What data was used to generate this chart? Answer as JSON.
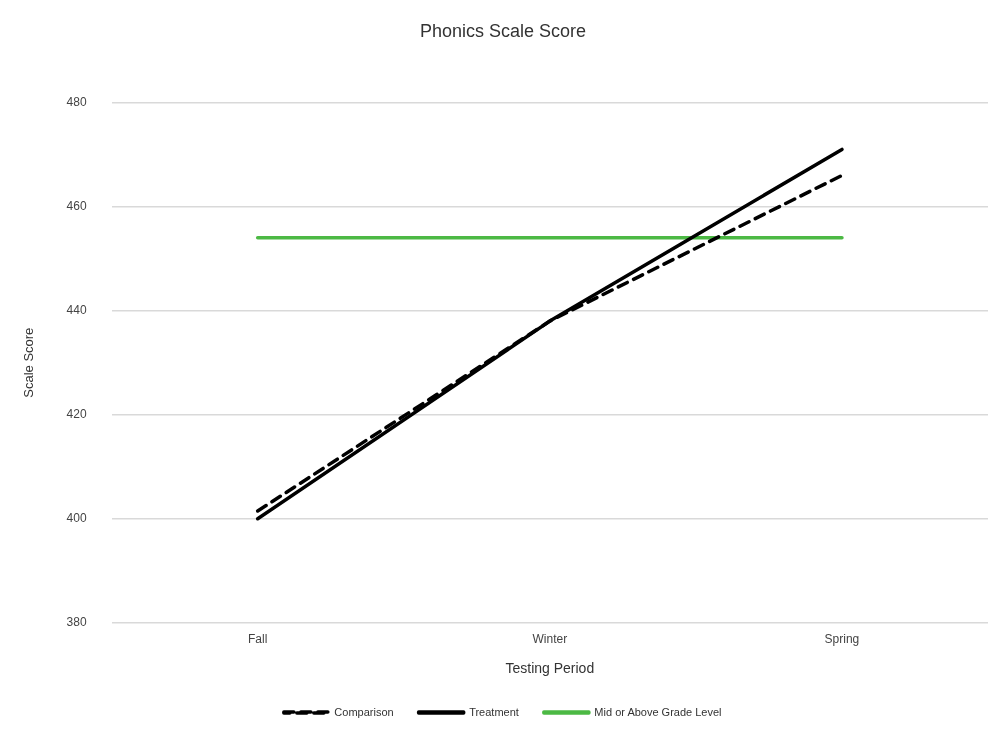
{
  "chart_data": {
    "type": "line",
    "title": "Phonics Scale Score",
    "xlabel": "Testing Period",
    "ylabel": "Scale Score",
    "categories": [
      "Fall",
      "Winter",
      "Spring"
    ],
    "series": [
      {
        "name": "Comparison",
        "color": "#000000",
        "line_style": "dashed",
        "values": [
          401.5,
          438,
          466
        ]
      },
      {
        "name": "Treatment",
        "color": "#000000",
        "line_style": "solid",
        "values": [
          400,
          438,
          471
        ]
      },
      {
        "name": "Mid or Above Grade Level",
        "color": "#4cb944",
        "line_style": "solid",
        "values": [
          454,
          454,
          454
        ]
      }
    ],
    "ylim": [
      380,
      480
    ],
    "yticks": [
      380,
      400,
      420,
      440,
      460,
      480
    ],
    "grid": "y",
    "legend": "bottom",
    "marker": "none"
  }
}
